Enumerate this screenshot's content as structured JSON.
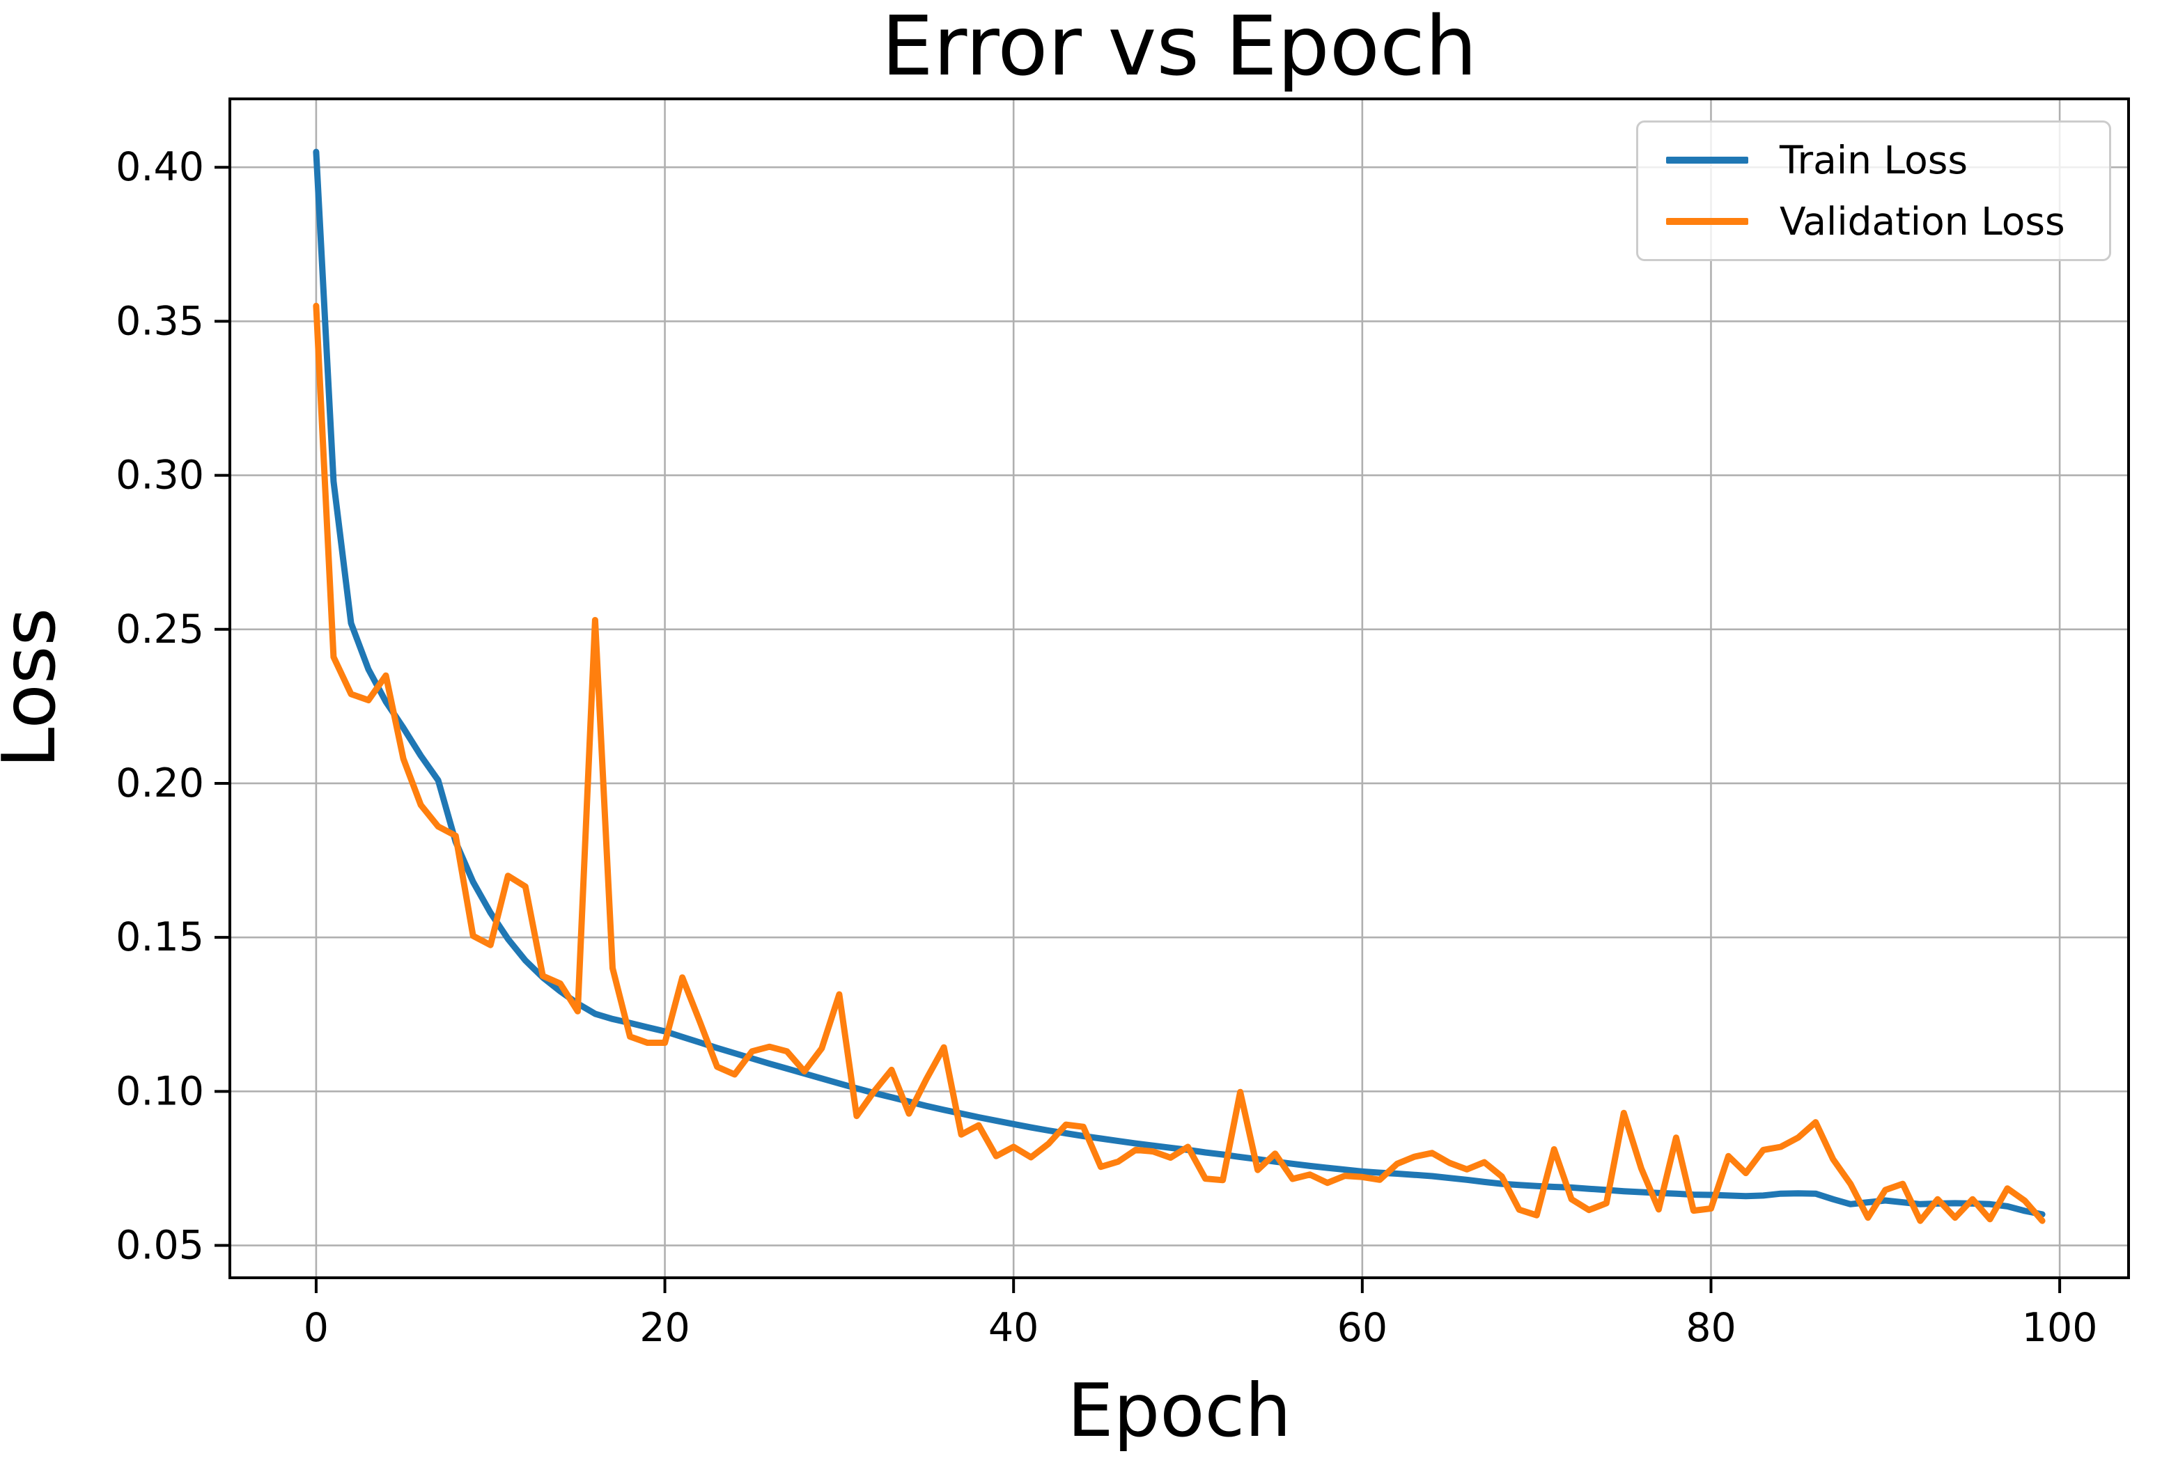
{
  "chart_data": {
    "type": "line",
    "title": "Error vs Epoch",
    "xlabel": "Epoch",
    "ylabel": "Loss",
    "grid": true,
    "legend_position": "upper right",
    "xlim": [
      -4.95,
      103.95
    ],
    "ylim": [
      0.0395,
      0.4222
    ],
    "x_ticks": [
      0,
      20,
      40,
      60,
      80,
      100
    ],
    "y_ticks": [
      0.05,
      0.1,
      0.15,
      0.2,
      0.25,
      0.3,
      0.35,
      0.4
    ],
    "y_tick_labels": [
      "0.05",
      "0.10",
      "0.15",
      "0.20",
      "0.25",
      "0.30",
      "0.35",
      "0.40"
    ],
    "x": [
      0,
      1,
      2,
      3,
      4,
      5,
      6,
      7,
      8,
      9,
      10,
      11,
      12,
      13,
      14,
      15,
      16,
      17,
      18,
      19,
      20,
      21,
      22,
      23,
      24,
      25,
      26,
      27,
      28,
      29,
      30,
      31,
      32,
      33,
      34,
      35,
      36,
      37,
      38,
      39,
      40,
      41,
      42,
      43,
      44,
      45,
      46,
      47,
      48,
      49,
      50,
      51,
      52,
      53,
      54,
      55,
      56,
      57,
      58,
      59,
      60,
      61,
      62,
      63,
      64,
      65,
      66,
      67,
      68,
      69,
      70,
      71,
      72,
      73,
      74,
      75,
      76,
      77,
      78,
      79,
      80,
      81,
      82,
      83,
      84,
      85,
      86,
      87,
      88,
      89,
      90,
      91,
      92,
      93,
      94,
      95,
      96,
      97,
      98,
      99
    ],
    "series": [
      {
        "name": "Train Loss",
        "color": "#1f77b4",
        "values": [
          0.405,
          0.298,
          0.252,
          0.237,
          0.2265,
          0.218,
          0.209,
          0.201,
          0.181,
          0.168,
          0.158,
          0.1495,
          0.1425,
          0.137,
          0.1325,
          0.1285,
          0.1252,
          0.1235,
          0.1222,
          0.1208,
          0.1195,
          0.1177,
          0.1159,
          0.1141,
          0.1124,
          0.1107,
          0.109,
          0.1074,
          0.1058,
          0.1042,
          0.1026,
          0.101,
          0.0995,
          0.0981,
          0.0967,
          0.0953,
          0.094,
          0.0928,
          0.0916,
          0.0905,
          0.0894,
          0.0883,
          0.0873,
          0.0864,
          0.0855,
          0.0847,
          0.0839,
          0.0831,
          0.0824,
          0.0817,
          0.081,
          0.0802,
          0.0795,
          0.0787,
          0.078,
          0.0772,
          0.0765,
          0.0758,
          0.0752,
          0.0746,
          0.074,
          0.0736,
          0.0733,
          0.0729,
          0.0725,
          0.0719,
          0.0713,
          0.0706,
          0.07,
          0.0696,
          0.0693,
          0.069,
          0.0688,
          0.0684,
          0.068,
          0.0676,
          0.0673,
          0.067,
          0.0668,
          0.0665,
          0.0664,
          0.0662,
          0.066,
          0.0662,
          0.0668,
          0.0669,
          0.0668,
          0.065,
          0.0634,
          0.064,
          0.0646,
          0.064,
          0.0634,
          0.0636,
          0.0637,
          0.0636,
          0.0634,
          0.0627,
          0.0612,
          0.0601
        ]
      },
      {
        "name": "Validation Loss",
        "color": "#ff7f0e",
        "values": [
          0.355,
          0.241,
          0.229,
          0.227,
          0.235,
          0.208,
          0.193,
          0.186,
          0.183,
          0.1505,
          0.1475,
          0.17,
          0.1665,
          0.1375,
          0.135,
          0.126,
          0.253,
          0.14,
          0.1178,
          0.1158,
          0.1158,
          0.137,
          0.1227,
          0.108,
          0.1055,
          0.113,
          0.1145,
          0.113,
          0.1065,
          0.114,
          0.1315,
          0.092,
          0.1,
          0.107,
          0.0928,
          0.104,
          0.1143,
          0.086,
          0.089,
          0.079,
          0.082,
          0.0786,
          0.083,
          0.0892,
          0.0885,
          0.0755,
          0.0772,
          0.081,
          0.0805,
          0.0785,
          0.082,
          0.0717,
          0.0712,
          0.0998,
          0.0745,
          0.0798,
          0.0716,
          0.073,
          0.0703,
          0.0726,
          0.0722,
          0.0713,
          0.0765,
          0.0788,
          0.08,
          0.0768,
          0.0747,
          0.077,
          0.0724,
          0.0616,
          0.0598,
          0.0812,
          0.065,
          0.0615,
          0.0637,
          0.093,
          0.075,
          0.0617,
          0.085,
          0.0613,
          0.062,
          0.079,
          0.0735,
          0.081,
          0.082,
          0.085,
          0.09,
          0.078,
          0.07,
          0.059,
          0.068,
          0.07,
          0.058,
          0.065,
          0.059,
          0.065,
          0.0585,
          0.0685,
          0.0645,
          0.058
        ]
      }
    ],
    "colors": {
      "grid": "#b0b0b0",
      "spine": "#000000",
      "background": "#ffffff",
      "legend_border": "#cccccc"
    }
  }
}
